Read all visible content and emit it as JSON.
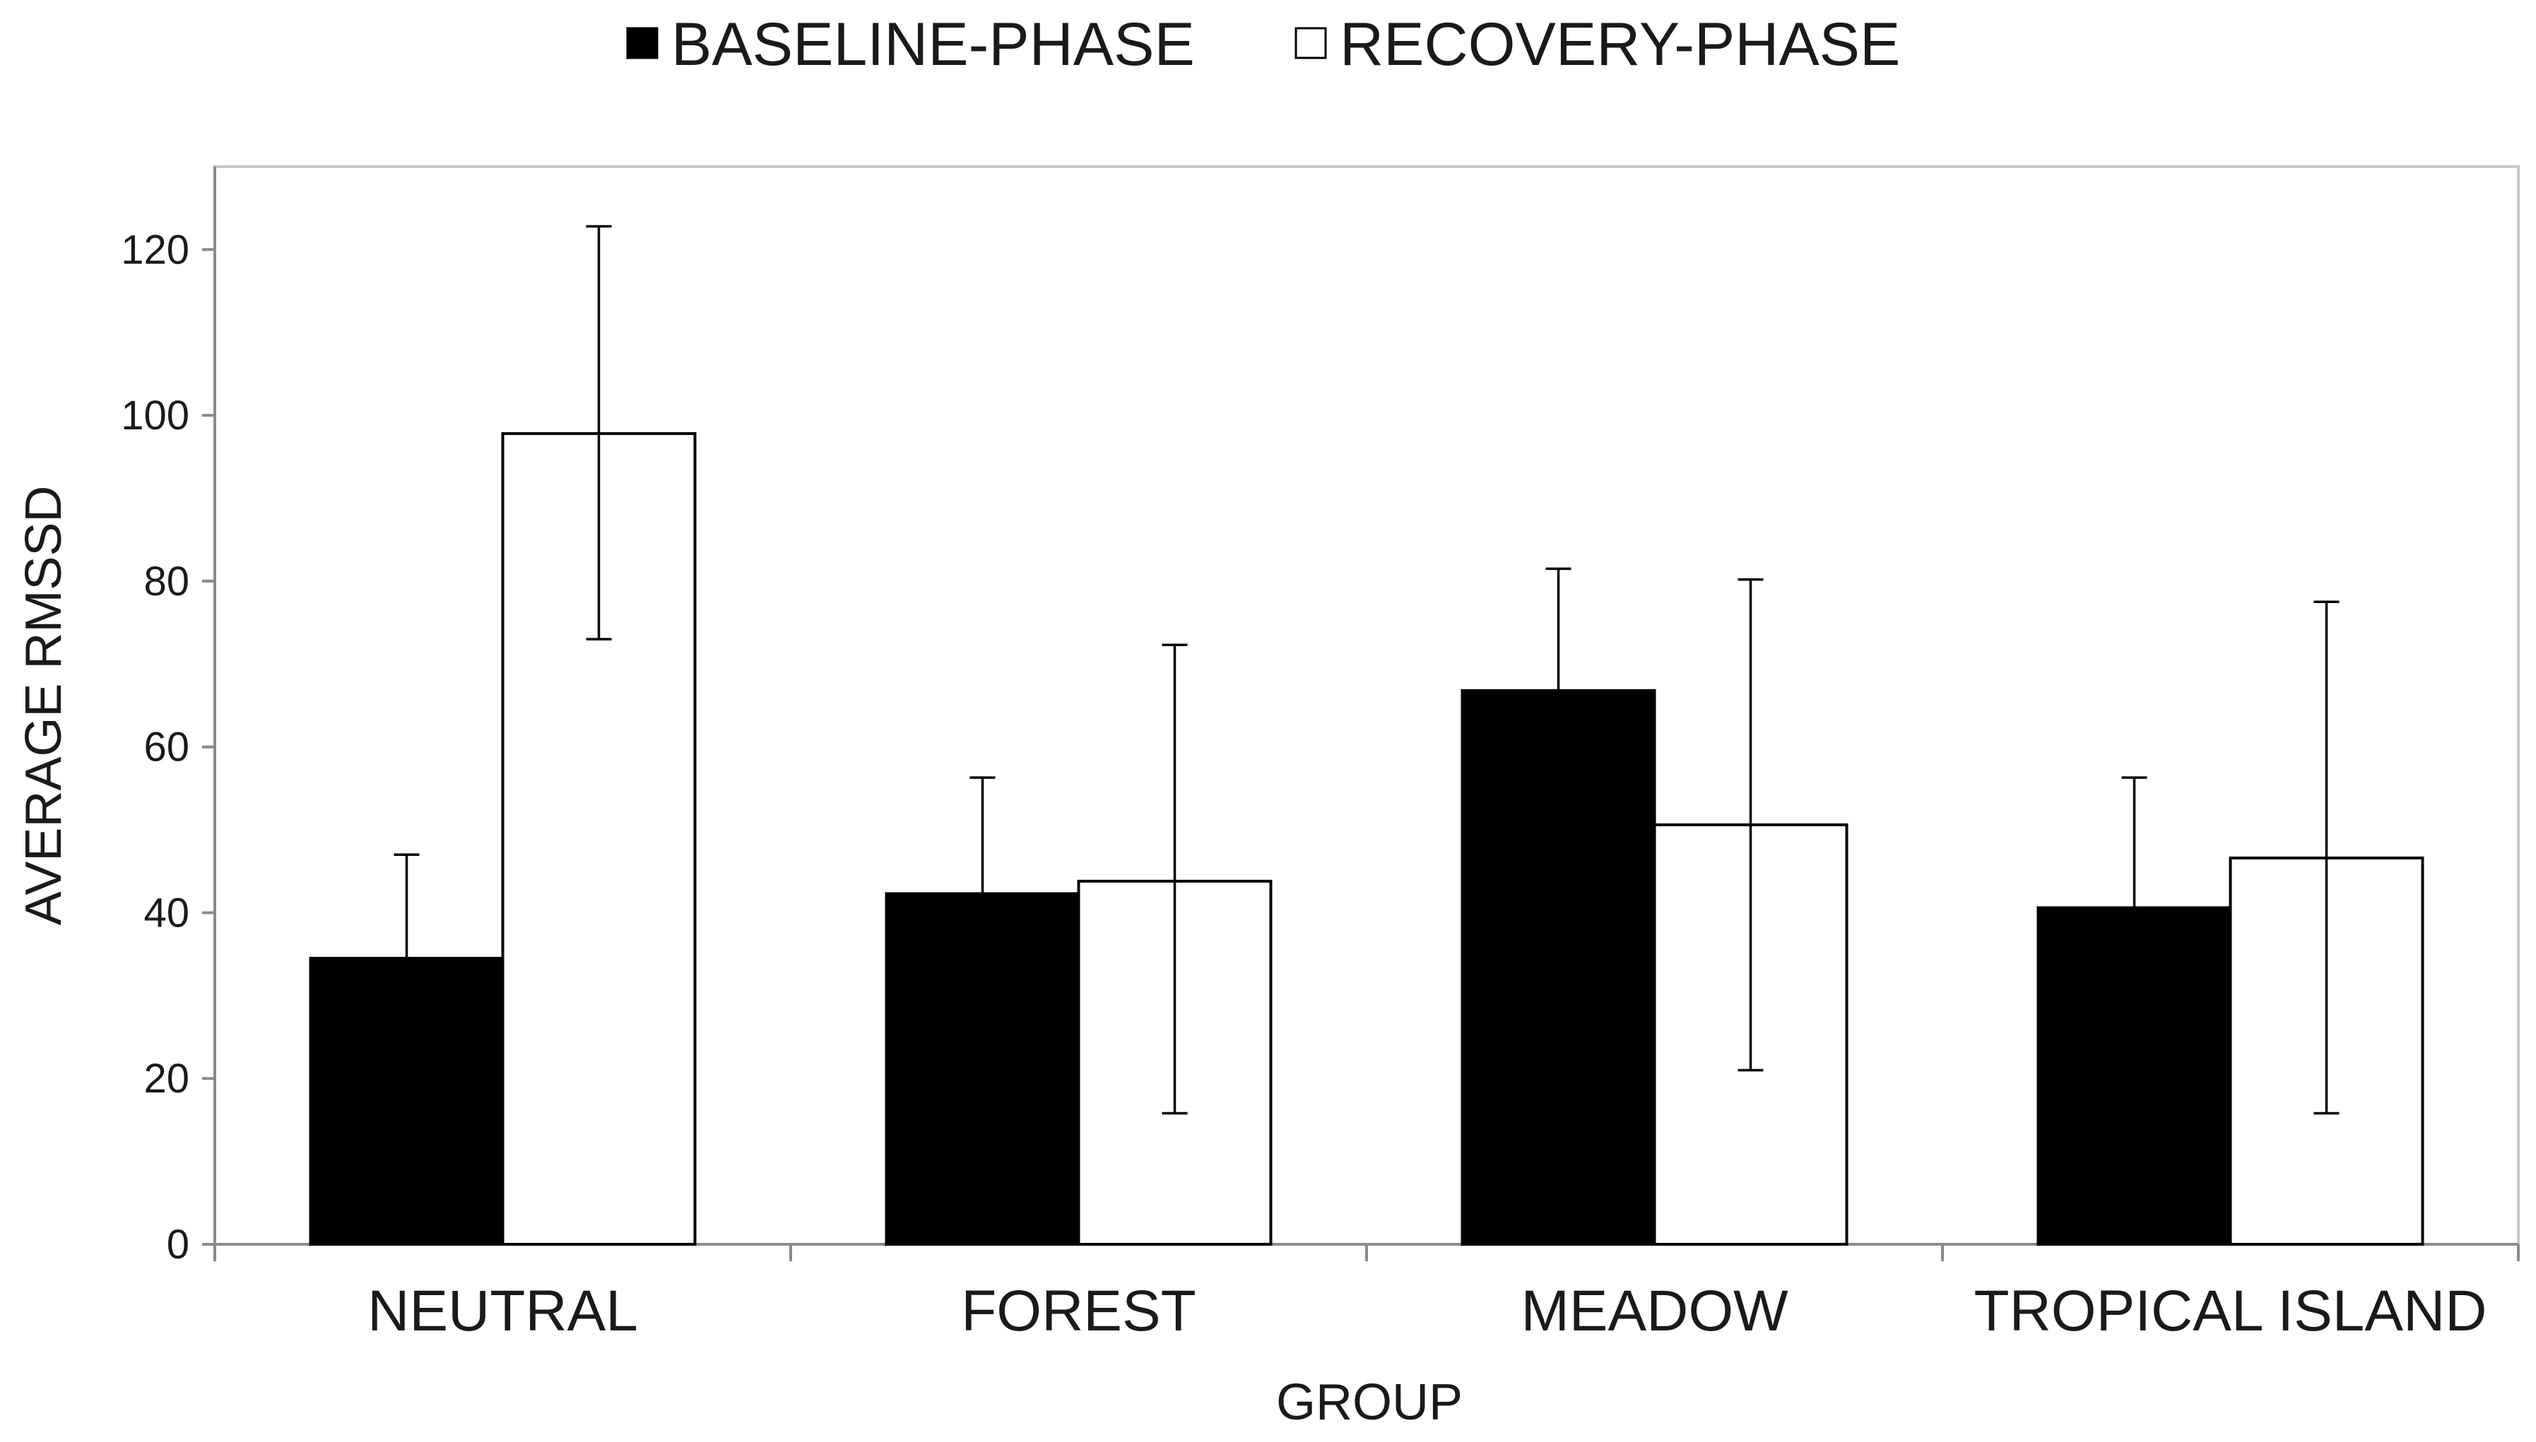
{
  "chart_data": {
    "type": "bar",
    "title": "",
    "xlabel": "GROUP",
    "ylabel": "AVERAGE RMSSD",
    "ylim": [
      0,
      130
    ],
    "yticks": [
      0,
      20,
      40,
      60,
      80,
      100,
      120
    ],
    "grid": false,
    "legend_position": "top",
    "categories": [
      "NEUTRAL",
      "FOREST",
      "MEADOW",
      "TROPICAL ISLAND"
    ],
    "series": [
      {
        "name": "BASELINE-PHASE",
        "fill": "#000000",
        "values": [
          34.5,
          42.3,
          66.8,
          40.6
        ],
        "error_upper": [
          47,
          56.3,
          81.5,
          56.3
        ],
        "error_lower": [
          34.5,
          42.3,
          66.8,
          40.6
        ]
      },
      {
        "name": "RECOVERY-PHASE",
        "fill": "#ffffff",
        "values": [
          97.8,
          43.8,
          50.6,
          46.6
        ],
        "error_upper": [
          122.8,
          72.3,
          80.2,
          77.5
        ],
        "error_lower": [
          73,
          15.8,
          21,
          15.8
        ]
      }
    ]
  }
}
